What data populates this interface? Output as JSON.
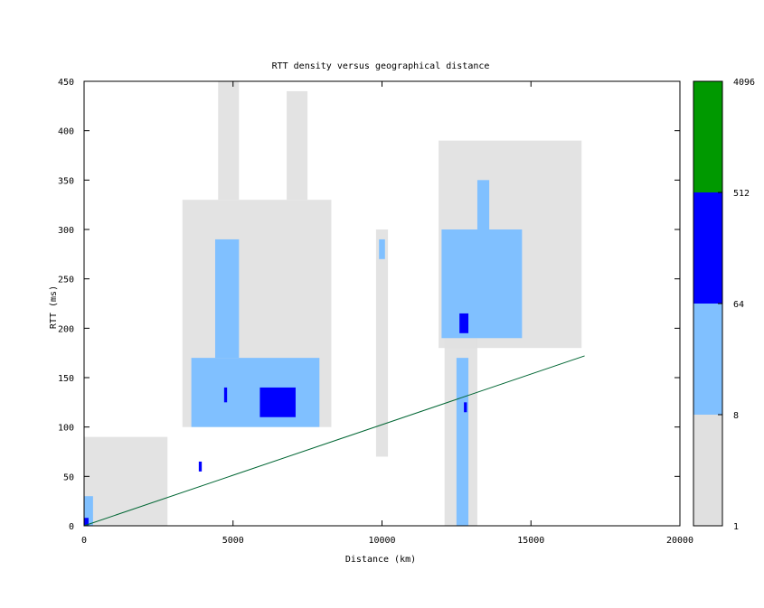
{
  "chart_data": {
    "type": "heatmap",
    "title": "RTT density versus geographical distance",
    "xlabel": "Distance (km)",
    "ylabel": "RTT (ms)",
    "xlim": [
      0,
      20000
    ],
    "ylim": [
      0,
      450
    ],
    "x_ticks": [
      "0",
      "5000",
      "10000",
      "15000",
      "20000"
    ],
    "y_ticks": [
      "0",
      "50",
      "100",
      "150",
      "200",
      "250",
      "300",
      "350",
      "400",
      "450"
    ],
    "colorbar": {
      "scale": "log",
      "tick_labels": [
        "1",
        "8",
        "64",
        "512",
        "4096"
      ],
      "bands": [
        {
          "from": 1,
          "to": 8,
          "color": "#e0e0e0"
        },
        {
          "from": 8,
          "to": 64,
          "color": "#80c0ff"
        },
        {
          "from": 64,
          "to": 512,
          "color": "#0000ff"
        },
        {
          "from": 512,
          "to": 4096,
          "color": "#009900"
        }
      ]
    },
    "density_regions": [
      {
        "x": [
          0,
          2800
        ],
        "y": [
          0,
          90
        ],
        "level": 1
      },
      {
        "x": [
          0,
          300
        ],
        "y": [
          0,
          30
        ],
        "level": 2
      },
      {
        "x": [
          0,
          150
        ],
        "y": [
          0,
          8
        ],
        "level": 3
      },
      {
        "x": [
          3300,
          8300
        ],
        "y": [
          100,
          330
        ],
        "level": 1
      },
      {
        "x": [
          4500,
          5200
        ],
        "y": [
          330,
          450
        ],
        "level": 1
      },
      {
        "x": [
          6800,
          7500
        ],
        "y": [
          330,
          440
        ],
        "level": 1
      },
      {
        "x": [
          3600,
          7900
        ],
        "y": [
          100,
          170
        ],
        "level": 2
      },
      {
        "x": [
          4400,
          5200
        ],
        "y": [
          170,
          290
        ],
        "level": 2
      },
      {
        "x": [
          5900,
          7100
        ],
        "y": [
          110,
          140
        ],
        "level": 3
      },
      {
        "x": [
          4700,
          4800
        ],
        "y": [
          125,
          140
        ],
        "level": 3
      },
      {
        "x": [
          3850,
          3950
        ],
        "y": [
          55,
          65
        ],
        "level": 3
      },
      {
        "x": [
          9800,
          10200
        ],
        "y": [
          70,
          300
        ],
        "level": 1
      },
      {
        "x": [
          9900,
          10100
        ],
        "y": [
          270,
          290
        ],
        "level": 2
      },
      {
        "x": [
          11900,
          16700
        ],
        "y": [
          180,
          390
        ],
        "level": 1
      },
      {
        "x": [
          12100,
          13200
        ],
        "y": [
          0,
          200
        ],
        "level": 1
      },
      {
        "x": [
          12000,
          14700
        ],
        "y": [
          190,
          300
        ],
        "level": 2
      },
      {
        "x": [
          13200,
          13600
        ],
        "y": [
          300,
          350
        ],
        "level": 2
      },
      {
        "x": [
          12500,
          12900
        ],
        "y": [
          0,
          170
        ],
        "level": 2
      },
      {
        "x": [
          12600,
          12900
        ],
        "y": [
          195,
          215
        ],
        "level": 3
      },
      {
        "x": [
          12750,
          12850
        ],
        "y": [
          115,
          125
        ],
        "level": 3
      }
    ],
    "lines": [
      {
        "x": [
          0,
          16800
        ],
        "y": [
          0,
          172
        ],
        "color": "#006633"
      }
    ]
  }
}
